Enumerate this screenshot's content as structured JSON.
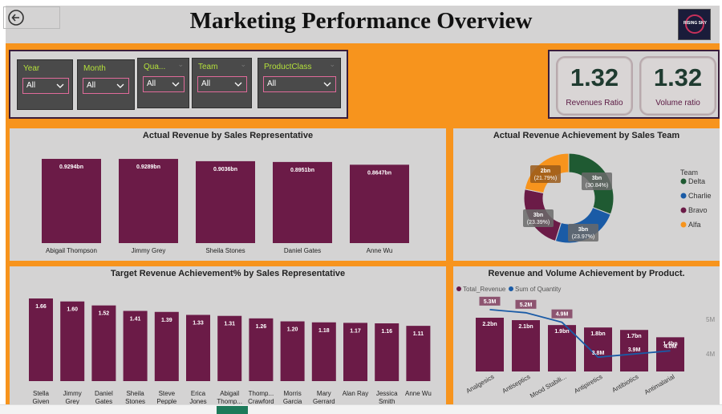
{
  "header": {
    "title": "Marketing Performance Overview",
    "logo_text": "RISING SKY"
  },
  "slicers": [
    {
      "label": "Year",
      "value": "All"
    },
    {
      "label": "Month",
      "value": "All"
    },
    {
      "label": "Qua...",
      "value": "All"
    },
    {
      "label": "Team",
      "value": "All"
    },
    {
      "label": "ProductClass",
      "value": "All"
    }
  ],
  "kpis": [
    {
      "value": "1.32",
      "label": "Revenues Ratio"
    },
    {
      "value": "1.32",
      "label": "Volume ratio"
    }
  ],
  "colors": {
    "bar": "#6b1b47",
    "orange": "#f7941d",
    "panel": "#d4d3d3"
  },
  "chart_data": [
    {
      "type": "bar",
      "title": "Actual Revenue by Sales Representative",
      "categories": [
        "Abigail Thompson",
        "Jimmy Grey",
        "Sheila Stones",
        "Daniel Gates",
        "Anne Wu"
      ],
      "values": [
        0.9294,
        0.9289,
        0.9036,
        0.8951,
        0.8647
      ],
      "labels": [
        "0.9294bn",
        "0.9289bn",
        "0.9036bn",
        "0.8951bn",
        "0.8647bn"
      ]
    },
    {
      "type": "pie",
      "title": "Actual Revenue Achievement by Sales Team",
      "legend_title": "Team",
      "legend_position": "right",
      "series": [
        {
          "name": "Delta",
          "value": 30.84,
          "label": "3bn\n(30.84%)",
          "color": "#1f5a32"
        },
        {
          "name": "Charlie",
          "value": 23.97,
          "label": "3bn\n(23.97%)",
          "color": "#1a5ba6"
        },
        {
          "name": "Bravo",
          "value": 23.39,
          "label": "3bn\n(23.39%)",
          "color": "#6b1b47"
        },
        {
          "name": "Alfa",
          "value": 21.79,
          "label": "2bn\n(21.79%)",
          "color": "#f7941d"
        }
      ]
    },
    {
      "type": "bar",
      "title": "Target Revenue Achievement% by Sales Representative",
      "categories": [
        "Stella Given",
        "Jimmy Grey",
        "Daniel Gates",
        "Sheila Stones",
        "Steve Pepple",
        "Erica Jones",
        "Abigail Thomp...",
        "Thomp... Crawford",
        "Morris Garcia",
        "Mary Gerrard",
        "Alan Ray",
        "Jessica Smith",
        "Anne Wu"
      ],
      "category_lines": [
        [
          "Stella",
          "Given"
        ],
        [
          "Jimmy",
          "Grey"
        ],
        [
          "Daniel",
          "Gates"
        ],
        [
          "Sheila",
          "Stones"
        ],
        [
          "Steve",
          "Pepple"
        ],
        [
          "Erica",
          "Jones"
        ],
        [
          "Abigail",
          "Thomp..."
        ],
        [
          "Thomp...",
          "Crawford"
        ],
        [
          "Morris",
          "Garcia"
        ],
        [
          "Mary",
          "Gerrard"
        ],
        [
          "Alan Ray",
          ""
        ],
        [
          "Jessica",
          "Smith"
        ],
        [
          "Anne Wu",
          ""
        ]
      ],
      "values": [
        1.66,
        1.6,
        1.52,
        1.41,
        1.39,
        1.33,
        1.31,
        1.26,
        1.2,
        1.18,
        1.17,
        1.16,
        1.11
      ]
    },
    {
      "type": "bar",
      "title": "Revenue and Volume Achievement by Product.",
      "categories": [
        "Analgesics",
        "Antiseptics",
        "Mood Stabili...",
        "Antipiretics",
        "Antibiotics",
        "Antimalarial"
      ],
      "series": [
        {
          "name": "Total_Revenue",
          "type": "bar",
          "values": [
            2.2,
            2.1,
            1.9,
            1.8,
            1.7,
            1.4
          ],
          "labels": [
            "2.2bn",
            "2.1bn",
            "1.9bn",
            "1.8bn",
            "1.7bn",
            "1.4bn"
          ],
          "color": "#6b1b47"
        },
        {
          "name": "Sum of Quantity",
          "type": "line",
          "values": [
            5.3,
            5.2,
            4.9,
            3.8,
            3.9,
            4.0
          ],
          "labels": [
            "5.3M",
            "5.2M",
            "4.9M",
            "3.8M",
            "3.9M",
            "4.0M"
          ],
          "color": "#1a5ba6"
        }
      ],
      "y2_ticks": [
        "5M",
        "4M"
      ]
    }
  ]
}
